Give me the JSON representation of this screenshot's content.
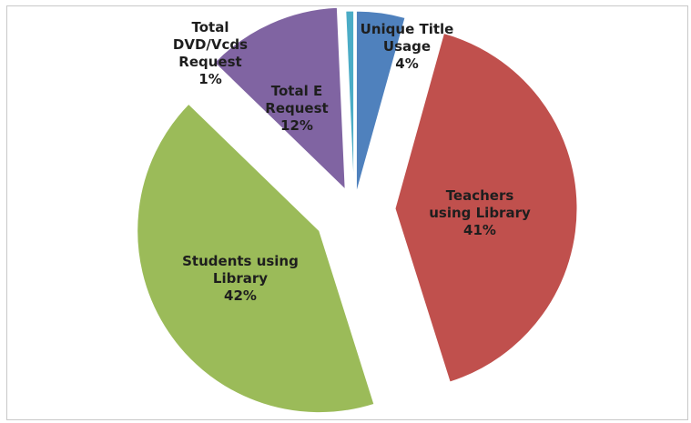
{
  "chart_data": {
    "type": "pie",
    "exploded": true,
    "start_angle_deg": 0,
    "direction": "clockwise",
    "slices": [
      {
        "name": "Unique Title Usage",
        "label_lines": [
          "Unique Title",
          "Usage",
          "4%"
        ],
        "percent_label": "4%",
        "value": 4.3,
        "color": "#4f81bd",
        "label_position": "outside"
      },
      {
        "name": "Teachers using Library",
        "label_lines": [
          "Teachers",
          "using Library",
          "41%"
        ],
        "percent_label": "41%",
        "value": 40.7,
        "color": "#c0504d",
        "label_position": "inside"
      },
      {
        "name": "Students using Library",
        "label_lines": [
          "Students using",
          "Library",
          "42%"
        ],
        "percent_label": "42%",
        "value": 42.0,
        "color": "#9bbb59",
        "label_position": "inside"
      },
      {
        "name": "Total E Request",
        "label_lines": [
          "Total E",
          "Request",
          "12%"
        ],
        "percent_label": "12%",
        "value": 12.0,
        "color": "#8064a2",
        "label_position": "inside"
      },
      {
        "name": "Total DVD/Vcds Request",
        "label_lines": [
          "Total",
          "DVD/Vcds",
          "Request",
          "1%"
        ],
        "percent_label": "1%",
        "value": 0.7,
        "color": "#4bacc6",
        "label_position": "outside"
      }
    ],
    "legend": "none",
    "title": ""
  }
}
